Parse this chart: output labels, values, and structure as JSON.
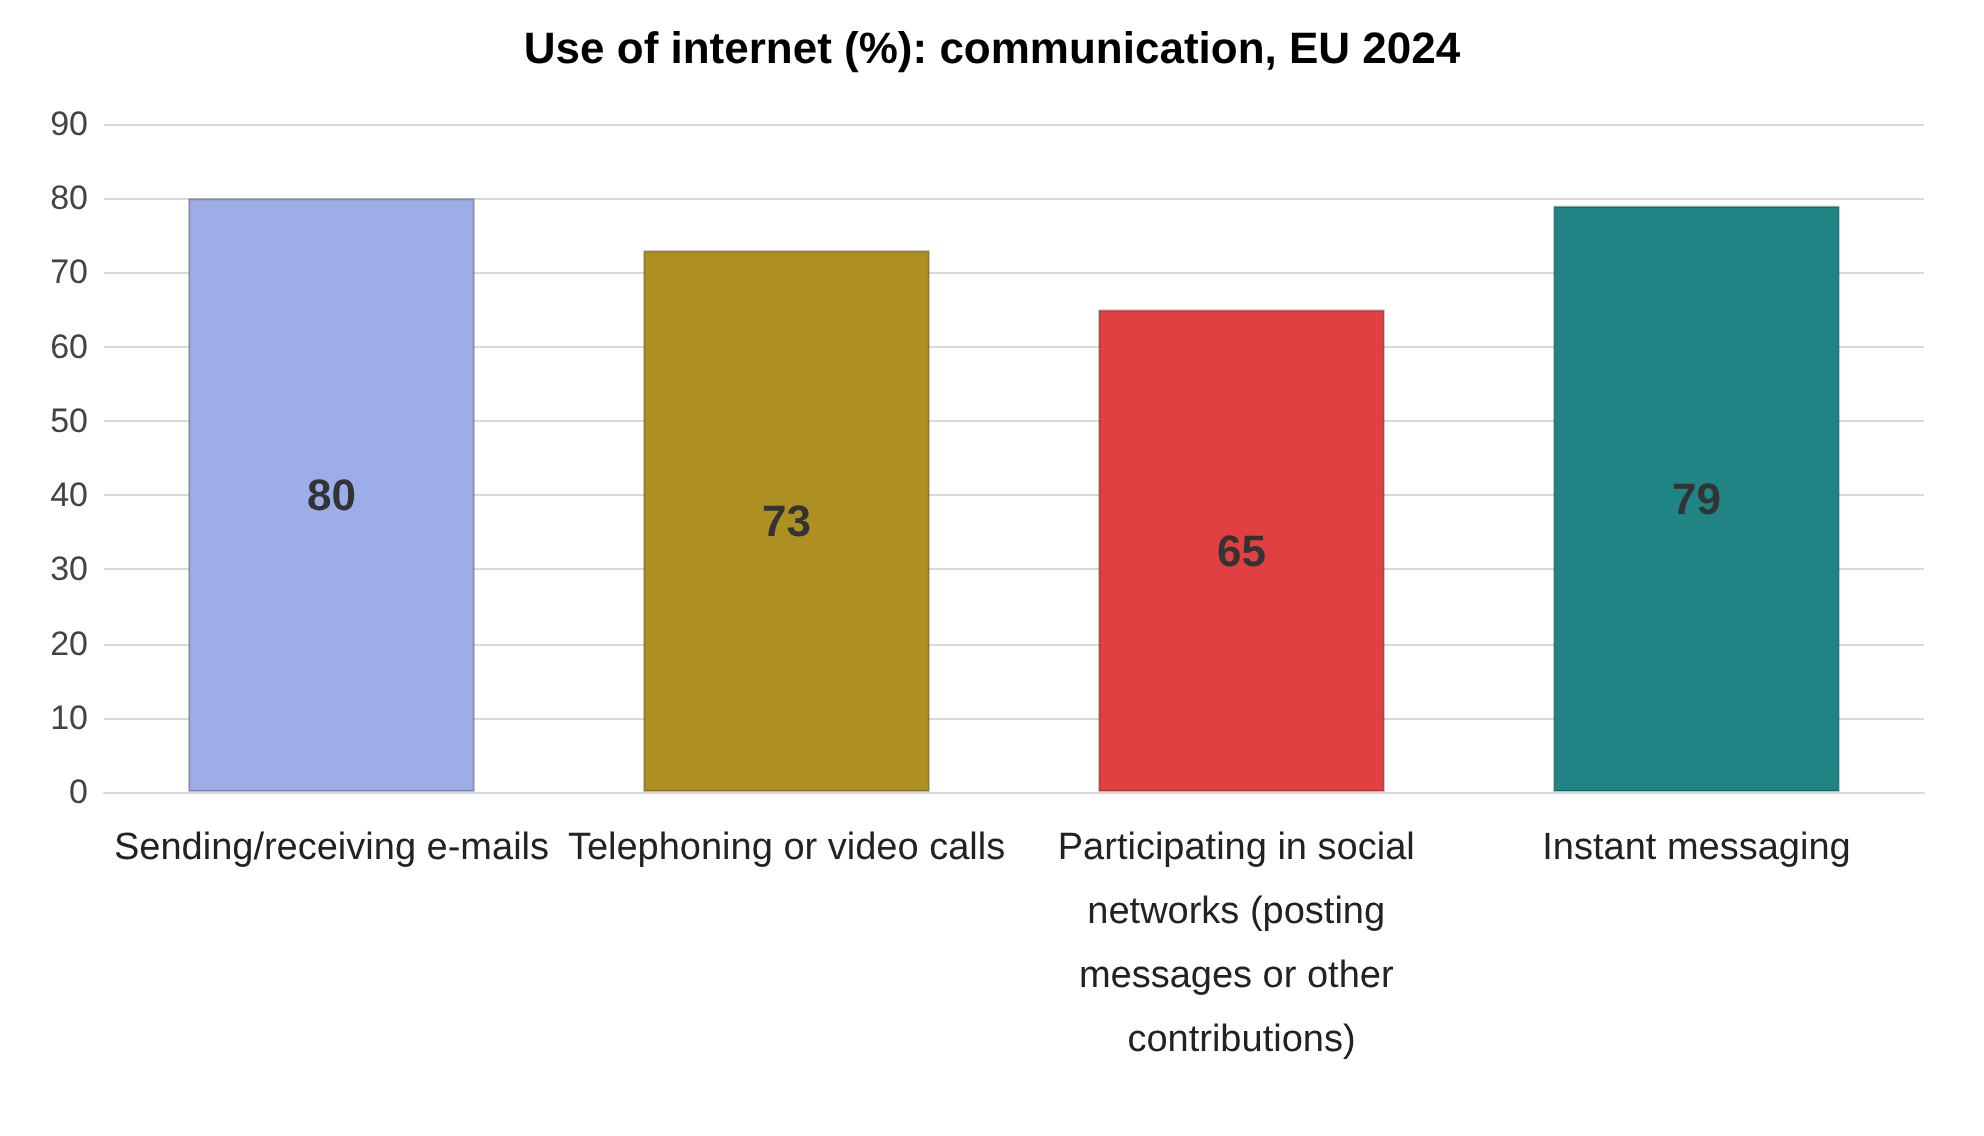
{
  "chart_data": {
    "type": "bar",
    "title": "Use of internet (%): communication, EU 2024",
    "categories": [
      "Sending/receiving e-mails",
      "Telephoning or video calls",
      "Participating in social networks (posting messages or other contributions)",
      "Instant messaging"
    ],
    "values": [
      80,
      73,
      65,
      79
    ],
    "colors": [
      "#9dade8",
      "#ae8f22",
      "#e04040",
      "#218484"
    ],
    "ylim": [
      0,
      90
    ],
    "yticks": [
      0,
      10,
      20,
      30,
      40,
      50,
      60,
      70,
      80,
      90
    ],
    "grid": "y",
    "data_labels": true
  }
}
